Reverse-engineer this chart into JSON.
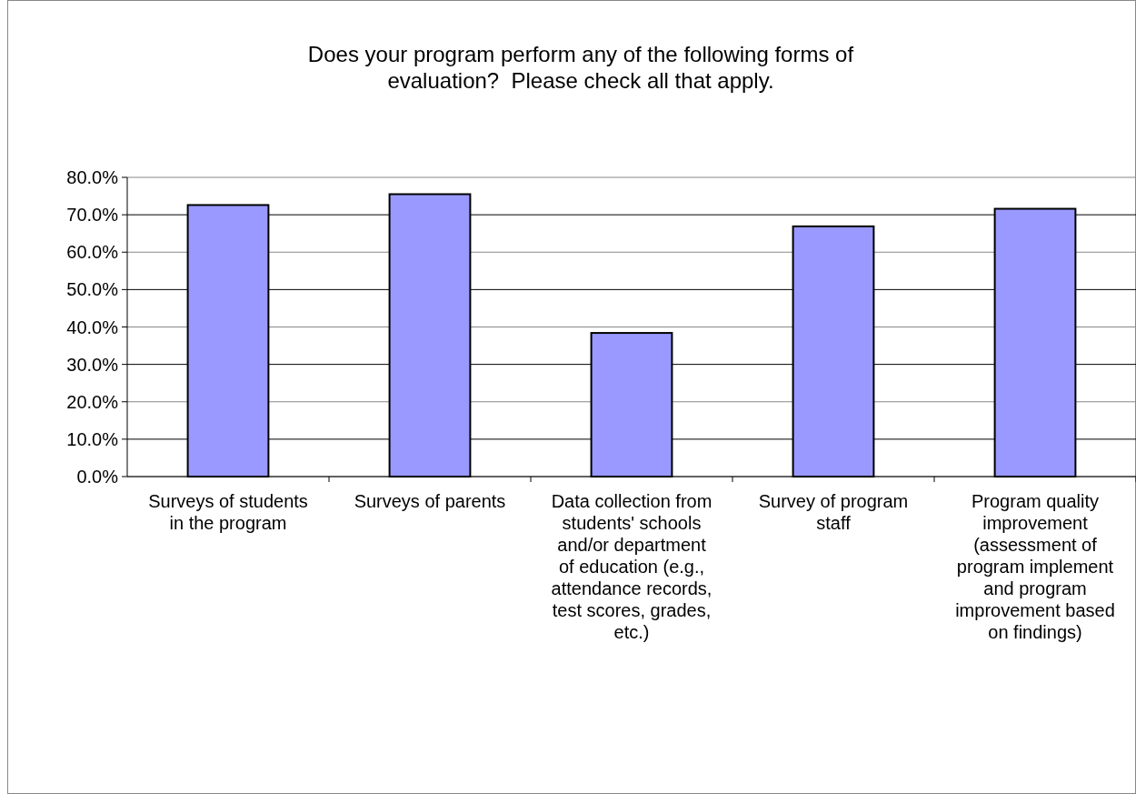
{
  "chart_data": {
    "type": "bar",
    "title": "Does your program perform any of the following forms of evaluation?  Please check all that apply.",
    "categories": [
      "Surveys of students in the program",
      "Surveys of parents",
      "Data collection from students' schools and/or department of education (e.g., attendance records, test scores, grades, etc.)",
      "Survey of program staff",
      "Program quality improvement (assessment of program implement and program improvement based on findings)"
    ],
    "values": [
      72.6,
      75.5,
      38.4,
      66.9,
      71.6
    ],
    "color": "#9999ff",
    "ylim": [
      0,
      80
    ],
    "yticks": [
      {
        "value": 0,
        "label": "0.0%"
      },
      {
        "value": 10,
        "label": "10.0%"
      },
      {
        "value": 20,
        "label": "20.0%"
      },
      {
        "value": 30,
        "label": "30.0%"
      },
      {
        "value": 40,
        "label": "40.0%"
      },
      {
        "value": 50,
        "label": "50.0%"
      },
      {
        "value": 60,
        "label": "60.0%"
      },
      {
        "value": 70,
        "label": "70.0%"
      },
      {
        "value": 80,
        "label": "80.0%"
      }
    ],
    "grid": "y"
  }
}
